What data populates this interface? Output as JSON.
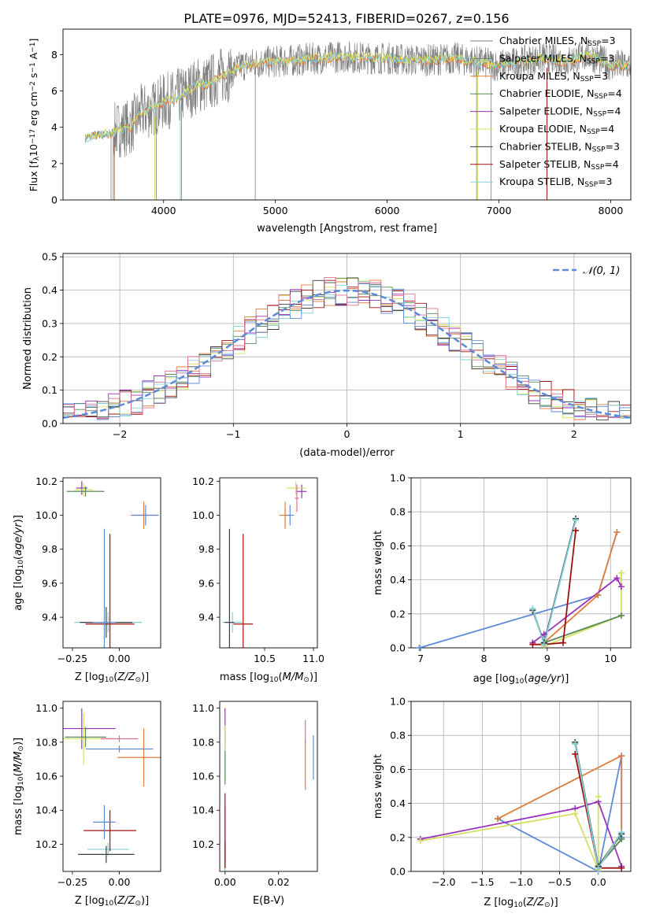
{
  "figure_title": "PLATE=0976, MJD=52413, FIBERID=0267, z=0.156",
  "model_labels": [
    "Chabrier MILES, N",
    "Salpeter MILES, N",
    "Kroupa MILES, N",
    "Chabrier ELODIE, N",
    "Salpeter ELODIE, N",
    "Kroupa ELODIE, N",
    "Chabrier STELIB, N",
    "Salpeter STELIB, N",
    "Kroupa STELIB, N"
  ],
  "chart_data": [
    {
      "id": "spectrum",
      "type": "line",
      "xlabel": "wavelength [Angstrom, rest frame]",
      "ylabel_main": "Flux [f",
      "ylabel_sub": "λ",
      "ylabel_mid": "10",
      "ylabel_sup1": "−17",
      "ylabel_mid2": " erg cm",
      "ylabel_sup2": "−2",
      "ylabel_mid3": " s",
      "ylabel_sup3": "−1",
      "ylabel_mid4": " A",
      "ylabel_sup4": "−1",
      "ylabel_end": "]",
      "xlim": [
        3100,
        8180
      ],
      "ylim": [
        0,
        9.4
      ],
      "xticks": [
        4000,
        5000,
        6000,
        7000,
        8000
      ],
      "yticks": [
        0,
        2,
        4,
        6,
        8
      ],
      "legend": "upper right",
      "legend_entries": [
        {
          "name": "Chabrier MILES, N",
          "sub": "SSP",
          "tail": "=3",
          "color": "#808080"
        },
        {
          "name": "Salpeter MILES, N",
          "sub": "SSP",
          "tail": "=3",
          "color": "#808080"
        },
        {
          "name": "Kroupa MILES, N",
          "sub": "SSP",
          "tail": "=3",
          "color": "#e07b39"
        },
        {
          "name": "Chabrier ELODIE, N",
          "sub": "SSP",
          "tail": "=4",
          "color": "#5a8a5a"
        },
        {
          "name": "Salpeter ELODIE, N",
          "sub": "SSP",
          "tail": "=4",
          "color": "#9933bb"
        },
        {
          "name": "Kroupa ELODIE, N",
          "sub": "SSP",
          "tail": "=4",
          "color": "#d4e060"
        },
        {
          "name": "Chabrier STELIB, N",
          "sub": "SSP",
          "tail": "=3",
          "color": "#404040"
        },
        {
          "name": "Salpeter STELIB, N",
          "sub": "SSP",
          "tail": "=4",
          "color": "#a01010"
        },
        {
          "name": "Kroupa STELIB, N",
          "sub": "SSP",
          "tail": "=3",
          "color": "#80d0d8"
        }
      ],
      "data_profile": {
        "x": [
          3300,
          3400,
          3500,
          3600,
          3700,
          3800,
          3900,
          4000,
          4100,
          4200,
          4300,
          4400,
          4500,
          4600,
          4700,
          4800,
          4900,
          5000,
          5200,
          5400,
          5600,
          5800,
          6000,
          6200,
          6400,
          6600,
          6800,
          7000,
          7200,
          7400,
          7600,
          7800,
          8000
        ],
        "y": [
          3.4,
          3.6,
          3.6,
          3.9,
          4.0,
          4.8,
          5.0,
          5.4,
          5.6,
          5.9,
          6.3,
          6.4,
          6.8,
          7.0,
          7.4,
          7.5,
          7.6,
          7.6,
          7.7,
          7.8,
          7.9,
          7.8,
          7.8,
          7.7,
          7.7,
          7.8,
          7.6,
          7.4,
          7.6,
          7.8,
          7.6,
          8.0,
          7.4
        ]
      }
    },
    {
      "id": "residuals",
      "type": "histogram",
      "xlabel": "(data-model)/error",
      "ylabel": "Normed distribution",
      "xlim": [
        -2.5,
        2.5
      ],
      "ylim": [
        0,
        0.51
      ],
      "xticks": [
        -2,
        -1,
        0,
        1,
        2
      ],
      "yticks": [
        0.0,
        0.1,
        0.2,
        0.3,
        0.4,
        0.5
      ],
      "grid": true,
      "legend": "upper right",
      "gaussian_label": "𝒩(0, 1)",
      "gaussian_color": "#5b8bd8"
    },
    {
      "id": "age-vs-Z",
      "type": "errorbar",
      "xlabel": "Z [log",
      "xlabel_sub": "10",
      "xlabel_tail": "(Z/Z",
      "xlabel_sub2": "⊙",
      "xlabel_end": ")]",
      "ylabel": "age  [log",
      "ylabel_sub": "10",
      "ylabel_tail": "(age/yr)]",
      "xlim": [
        -0.3,
        0.22
      ],
      "ylim": [
        9.22,
        10.22
      ],
      "xticks": [
        -0.25,
        0.0
      ],
      "yticks": [
        9.4,
        9.6,
        9.8,
        10.0,
        10.2
      ],
      "points": [
        {
          "x": -0.06,
          "y": 9.37,
          "xerr": 0.18,
          "yerr": 0.06,
          "color": "#80d0d8"
        },
        {
          "x": -0.07,
          "y": 9.37,
          "xerr": 0.14,
          "yerr": 0.09,
          "color": "#404040"
        },
        {
          "x": -0.05,
          "y": 9.36,
          "xerr": 0.13,
          "yerr": 0.53,
          "color": "#a01010"
        },
        {
          "x": -0.08,
          "y": 9.37,
          "xerr": 0.06,
          "yerr": 0.55,
          "color": "#5b8bd8"
        },
        {
          "x": 0.13,
          "y": 10.0,
          "xerr": 0.07,
          "yerr": 0.08,
          "color": "#e07b39"
        },
        {
          "x": 0.14,
          "y": 10.0,
          "xerr": 0.07,
          "yerr": 0.06,
          "color": "#5b8bd8"
        },
        {
          "x": -0.2,
          "y": 10.16,
          "xerr": 0.03,
          "yerr": 0.04,
          "color": "#9933bb"
        },
        {
          "x": -0.19,
          "y": 10.15,
          "xerr": 0.05,
          "yerr": 0.04,
          "color": "#d4e060"
        },
        {
          "x": -0.18,
          "y": 10.14,
          "xerr": 0.1,
          "yerr": 0.03,
          "color": "#5a8a5a"
        }
      ]
    },
    {
      "id": "age-vs-mass",
      "type": "errorbar",
      "xlabel": "mass [log",
      "xlabel_sub": "10",
      "xlabel_tail": "(M/M",
      "xlabel_sub2": "⊙",
      "xlabel_end": ")]",
      "xlim": [
        10.04,
        11.04
      ],
      "ylim": [
        9.22,
        10.22
      ],
      "xticks": [
        10.5,
        11.0
      ],
      "yticks": [
        9.4,
        9.6,
        9.8,
        10.0,
        10.2
      ],
      "points": [
        {
          "x": 10.17,
          "y": 9.37,
          "xerr": 0.1,
          "yerr": 0.06,
          "color": "#80d0d8"
        },
        {
          "x": 10.14,
          "y": 9.37,
          "xerr": 0.05,
          "yerr": 0.55,
          "color": "#404040"
        },
        {
          "x": 10.28,
          "y": 9.36,
          "xerr": 0.1,
          "yerr": 0.53,
          "color": "#a01010"
        },
        {
          "x": 10.71,
          "y": 10.0,
          "xerr": 0.06,
          "yerr": 0.08,
          "color": "#e07b39"
        },
        {
          "x": 10.76,
          "y": 10.0,
          "xerr": 0.04,
          "yerr": 0.06,
          "color": "#5b8bd8"
        },
        {
          "x": 10.88,
          "y": 10.14,
          "xerr": 0.05,
          "yerr": 0.04,
          "color": "#9933bb"
        },
        {
          "x": 10.82,
          "y": 10.16,
          "xerr": 0.1,
          "yerr": 0.04,
          "color": "#d4e060"
        },
        {
          "x": 10.83,
          "y": 10.1,
          "xerr": 0.02,
          "yerr": 0.08,
          "color": "#e07090"
        }
      ]
    },
    {
      "id": "massweight-vs-age",
      "type": "line",
      "xlabel": "age  [log",
      "xlabel_sub": "10",
      "xlabel_tail": "(age/yr)]",
      "ylabel": "mass weight",
      "xlim": [
        6.85,
        10.32
      ],
      "ylim": [
        0,
        1.0
      ],
      "xticks": [
        7,
        8,
        9,
        10
      ],
      "yticks": [
        0.0,
        0.2,
        0.4,
        0.6,
        0.8,
        1.0
      ],
      "grid": true,
      "series": [
        {
          "color": "#5b8bd8",
          "x": [
            6.98,
            9.8,
            10.1
          ],
          "y": [
            0.0,
            0.31,
            0.68
          ]
        },
        {
          "color": "#e07b39",
          "x": [
            8.77,
            8.95,
            9.8,
            10.1
          ],
          "y": [
            0.23,
            0.03,
            0.31,
            0.68
          ]
        },
        {
          "color": "#9933bb",
          "x": [
            8.77,
            8.95,
            10.1,
            10.17
          ],
          "y": [
            0.03,
            0.08,
            0.41,
            0.36
          ]
        },
        {
          "color": "#d4e060",
          "x": [
            8.95,
            10.17,
            10.17
          ],
          "y": [
            0.01,
            0.19,
            0.44
          ]
        },
        {
          "color": "#5a8a5a",
          "x": [
            8.95,
            10.17
          ],
          "y": [
            0.03,
            0.19
          ]
        },
        {
          "color": "#a01010",
          "x": [
            8.77,
            8.95,
            9.25,
            9.45
          ],
          "y": [
            0.02,
            0.02,
            0.03,
            0.69
          ]
        },
        {
          "color": "#404040",
          "x": [
            8.77,
            8.95,
            9.45
          ],
          "y": [
            0.22,
            0.03,
            0.76
          ]
        },
        {
          "color": "#80d0d8",
          "x": [
            8.77,
            8.95,
            9.45
          ],
          "y": [
            0.23,
            0.02,
            0.75
          ]
        }
      ]
    },
    {
      "id": "mass-vs-Z",
      "type": "errorbar",
      "xlabel": "Z [log",
      "xlabel_sub": "10",
      "xlabel_tail": "(Z/Z",
      "xlabel_sub2": "⊙",
      "xlabel_end": ")]",
      "ylabel": "mass [log",
      "ylabel_sub": "10",
      "ylabel_tail": "(M/M",
      "ylabel_sub2": "⊙",
      "ylabel_end": ")]",
      "xlim": [
        -0.3,
        0.22
      ],
      "ylim": [
        10.04,
        11.04
      ],
      "xticks": [
        -0.25,
        0.0
      ],
      "yticks": [
        10.2,
        10.4,
        10.6,
        10.8,
        11.0
      ],
      "points": [
        {
          "x": -0.06,
          "y": 10.17,
          "xerr": 0.11,
          "yerr": 0.04,
          "color": "#80d0d8"
        },
        {
          "x": -0.07,
          "y": 10.14,
          "xerr": 0.15,
          "yerr": 0.05,
          "color": "#404040"
        },
        {
          "x": -0.05,
          "y": 10.28,
          "xerr": 0.14,
          "yerr": 0.12,
          "color": "#a01010"
        },
        {
          "x": -0.08,
          "y": 10.33,
          "xerr": 0.06,
          "yerr": 0.1,
          "color": "#5b8bd8"
        },
        {
          "x": 0.13,
          "y": 10.71,
          "xerr": 0.14,
          "yerr": 0.17,
          "color": "#e07b39"
        },
        {
          "x": 0.0,
          "y": 10.76,
          "xerr": 0.18,
          "yerr": 0.02,
          "color": "#5b8bd8"
        },
        {
          "x": -0.2,
          "y": 10.88,
          "xerr": 0.18,
          "yerr": 0.12,
          "color": "#9933bb"
        },
        {
          "x": -0.19,
          "y": 10.82,
          "xerr": 0.2,
          "yerr": 0.15,
          "color": "#d4e060"
        },
        {
          "x": -0.18,
          "y": 10.83,
          "xerr": 0.11,
          "yerr": 0.06,
          "color": "#5a8a5a"
        },
        {
          "x": 0.0,
          "y": 10.82,
          "xerr": 0.1,
          "yerr": 0.02,
          "color": "#e07090"
        }
      ]
    },
    {
      "id": "mass-vs-EBV",
      "type": "errorbar",
      "xlabel": "E(B-V)",
      "xlim": [
        -0.002,
        0.0345
      ],
      "ylim": [
        10.04,
        11.04
      ],
      "xticks": [
        0.0,
        0.02
      ],
      "yticks": [
        10.2,
        10.4,
        10.6,
        10.8,
        11.0
      ],
      "points": [
        {
          "x": 0.0,
          "y": 10.17,
          "xerr": 0.0,
          "yerr": 0.26,
          "color": "#80d0d8"
        },
        {
          "x": 0.0,
          "y": 10.14,
          "xerr": 0.0,
          "yerr": 0.08,
          "color": "#404040"
        },
        {
          "x": 0.0,
          "y": 10.28,
          "xerr": 0.0,
          "yerr": 0.22,
          "color": "#a01010"
        },
        {
          "x": 0.0,
          "y": 10.88,
          "xerr": 0.0,
          "yerr": 0.12,
          "color": "#9933bb"
        },
        {
          "x": 0.0,
          "y": 10.75,
          "xerr": 0.0,
          "yerr": 0.15,
          "color": "#d4e060"
        },
        {
          "x": 0.0,
          "y": 10.65,
          "xerr": 0.0,
          "yerr": 0.1,
          "color": "#5a8a5a"
        },
        {
          "x": 0.03,
          "y": 10.67,
          "xerr": 0.0,
          "yerr": 0.15,
          "color": "#e07b39"
        },
        {
          "x": 0.03,
          "y": 10.86,
          "xerr": 0.0,
          "yerr": 0.07,
          "color": "#e07090"
        },
        {
          "x": 0.033,
          "y": 10.71,
          "xerr": 0.0,
          "yerr": 0.13,
          "color": "#5b8bd8"
        }
      ]
    },
    {
      "id": "massweight-vs-Z",
      "type": "line",
      "xlabel": "Z [log",
      "xlabel_sub": "10",
      "xlabel_tail": "(Z/Z",
      "xlabel_sub2": "⊙",
      "xlabel_end": ")]",
      "ylabel": "mass weight",
      "xlim": [
        -2.42,
        0.42
      ],
      "ylim": [
        0,
        1.0
      ],
      "xticks": [
        -2.0,
        -1.5,
        -1.0,
        -0.5,
        0.0
      ],
      "grid": true,
      "yticks": [
        0.0,
        0.2,
        0.4,
        0.6,
        0.8,
        1.0
      ],
      "series": [
        {
          "color": "#5b8bd8",
          "x": [
            -1.3,
            0.0,
            0.3,
            0.3
          ],
          "y": [
            0.31,
            0.0,
            0.68,
            0.2
          ]
        },
        {
          "color": "#e07b39",
          "x": [
            -1.3,
            0.3,
            0.3,
            0.0
          ],
          "y": [
            0.31,
            0.68,
            0.23,
            0.03
          ]
        },
        {
          "color": "#9933bb",
          "x": [
            -2.3,
            -0.3,
            0.0,
            0.3
          ],
          "y": [
            0.19,
            0.37,
            0.41,
            0.03
          ]
        },
        {
          "color": "#d4e060",
          "x": [
            -2.3,
            -0.3,
            0.0,
            0.0
          ],
          "y": [
            0.18,
            0.34,
            0.01,
            0.44
          ]
        },
        {
          "color": "#5a8a5a",
          "x": [
            -0.3,
            0.0,
            0.3
          ],
          "y": [
            0.75,
            0.03,
            0.19
          ]
        },
        {
          "color": "#a01010",
          "x": [
            -0.3,
            0.0,
            0.3
          ],
          "y": [
            0.69,
            0.02,
            0.02
          ]
        },
        {
          "color": "#404040",
          "x": [
            -0.3,
            0.0,
            0.3
          ],
          "y": [
            0.76,
            0.03,
            0.22
          ]
        },
        {
          "color": "#80d0d8",
          "x": [
            -0.3,
            0.0,
            0.3
          ],
          "y": [
            0.75,
            0.02,
            0.23
          ]
        }
      ]
    }
  ]
}
